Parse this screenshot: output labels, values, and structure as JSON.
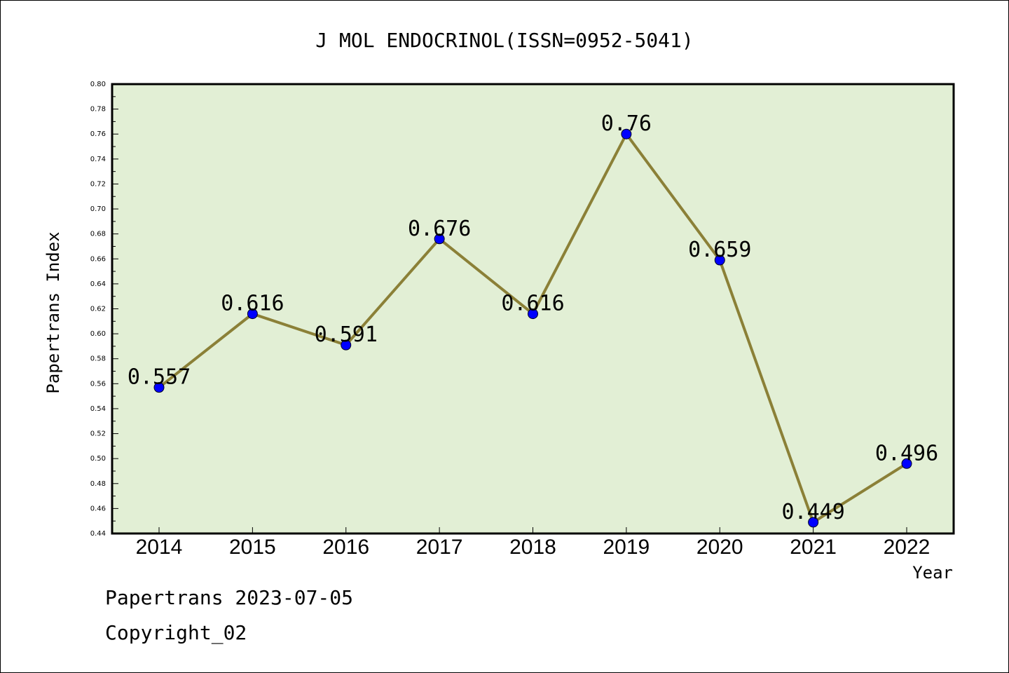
{
  "chart_data": {
    "type": "line",
    "title": "J MOL ENDOCRINOL(ISSN=0952-5041)",
    "xlabel": "Year",
    "ylabel": "Papertrans Index",
    "categories": [
      "2014",
      "2015",
      "2016",
      "2017",
      "2018",
      "2019",
      "2020",
      "2021",
      "2022"
    ],
    "values": [
      0.557,
      0.616,
      0.591,
      0.676,
      0.616,
      0.76,
      0.659,
      0.449,
      0.496
    ],
    "data_labels": [
      "0.557",
      "0.616",
      "0.591",
      "0.676",
      "0.616",
      "0.76",
      "0.659",
      "0.449",
      "0.496"
    ],
    "ylim": [
      0.44,
      0.8
    ],
    "y_ticks": [
      "0.44",
      "0.46",
      "0.48",
      "0.50",
      "0.52",
      "0.54",
      "0.56",
      "0.58",
      "0.60",
      "0.62",
      "0.64",
      "0.66",
      "0.68",
      "0.70",
      "0.72",
      "0.74",
      "0.76",
      "0.78",
      "0.80"
    ],
    "grid": false,
    "legend": "none",
    "colors": {
      "plot_background": "#e2efd5",
      "line": "#8b8037",
      "marker": "#0000ff"
    }
  },
  "footer": {
    "line1": "Papertrans 2023-07-05",
    "line2": "Copyright_02"
  }
}
